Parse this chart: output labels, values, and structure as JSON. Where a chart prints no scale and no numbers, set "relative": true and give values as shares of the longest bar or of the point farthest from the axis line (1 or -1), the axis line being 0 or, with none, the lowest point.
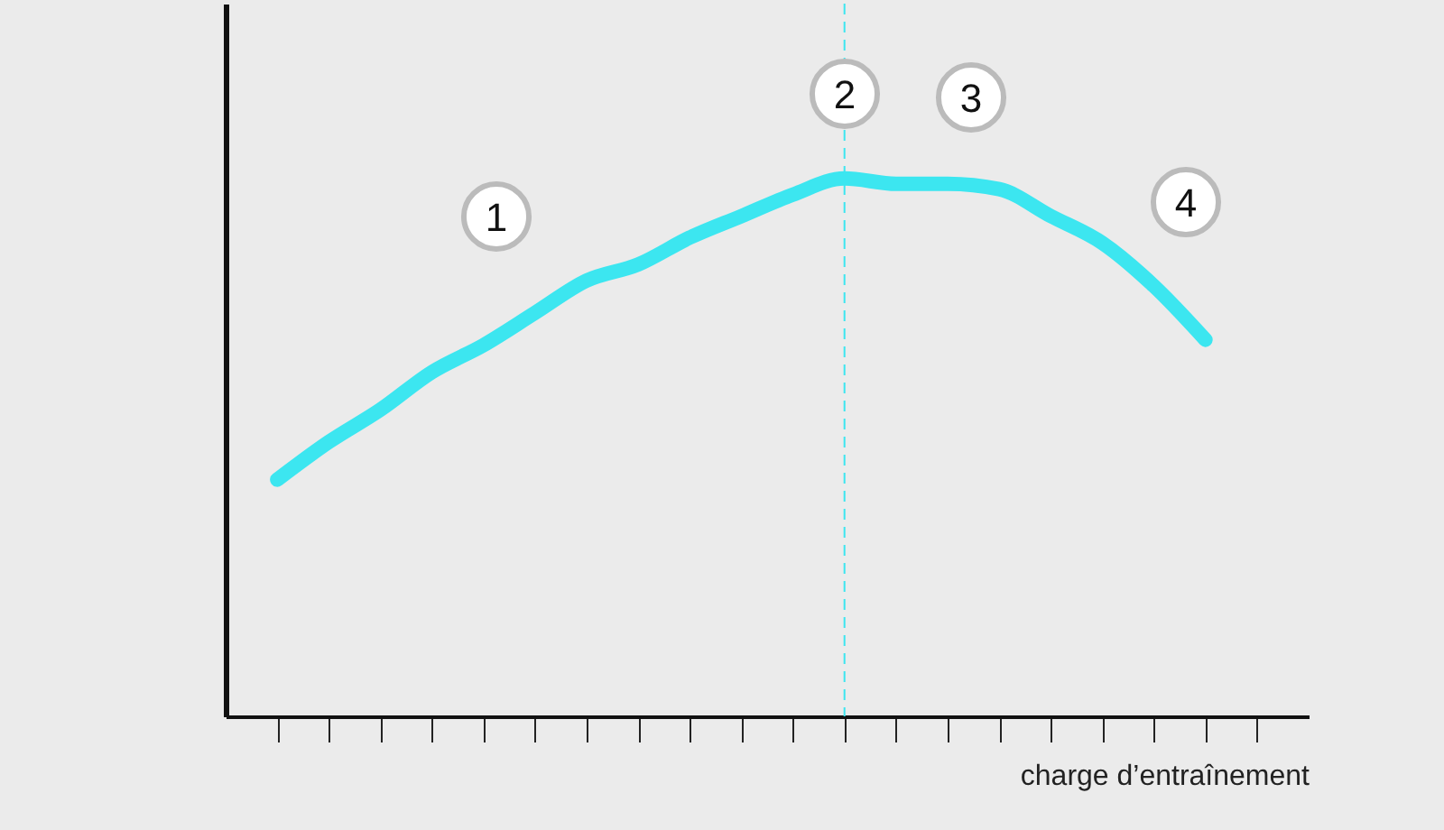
{
  "chart_data": {
    "type": "line",
    "relative": true,
    "xlabel": "charge d’entraînement",
    "categories": [
      null,
      null,
      null,
      null,
      null,
      null,
      null,
      null,
      null,
      null,
      null,
      null,
      null,
      null,
      null,
      null,
      null,
      null,
      null,
      null
    ],
    "series": [
      {
        "color": "#3ce6f0",
        "values": [
          0.44,
          0.51,
          0.57,
          0.64,
          0.69,
          0.75,
          0.81,
          0.84,
          0.89,
          0.93,
          0.97,
          1.0,
          0.99,
          0.99,
          0.98,
          0.93,
          0.88,
          0.8,
          0.7,
          null
        ]
      }
    ],
    "ref_lines": [
      {
        "axis": "x",
        "color": "#3ce6f0",
        "line_style": "dashed"
      }
    ],
    "annotations": [
      "1",
      "2",
      "3",
      "4"
    ],
    "tick_labels": false,
    "grid": false,
    "marker": "none",
    "line_style": "solid"
  }
}
